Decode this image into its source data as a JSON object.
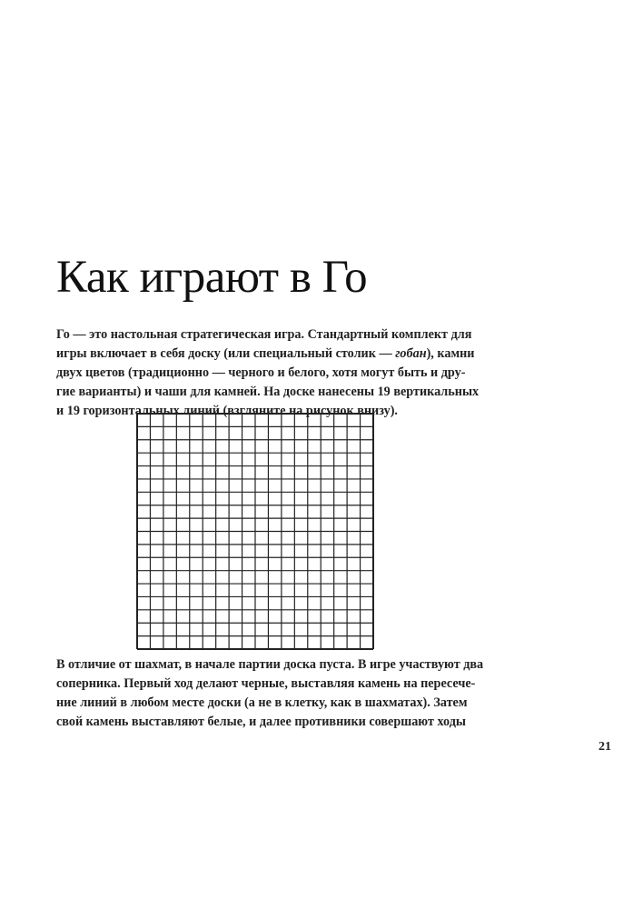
{
  "title": "Как играют в Го",
  "paragraph1": {
    "lines": [
      [
        "Го — это настольная стратегическая игра. Стандартный комплект для"
      ],
      [
        "игры включает в себя доску (или специальный столик — ",
        "гобан",
        "), камни"
      ],
      [
        "двух цветов (традиционно — черного и белого, хотя могут быть и дру-"
      ],
      [
        "гие варианты) и чаши для камней. На доске нанесены 19 вертикальных"
      ],
      [
        "и 19 горизонтальных линий (взгляните на рисунок внизу)."
      ]
    ]
  },
  "figure": {
    "type": "go-board-grid",
    "vertical_lines": 19,
    "horizontal_lines": 19,
    "line_color": "#222222"
  },
  "paragraph2": {
    "lines": [
      "В отличие от шахмат, в начале партии доска пуста. В игре участвуют два",
      "соперника. Первый ход делают черные, выставляя камень на пересече-",
      "ние линий в любом месте доски (а не в клетку, как в шахматах). Затем",
      "свой камень выставляют белые, и далее противники совершают ходы"
    ]
  },
  "page_number": "21"
}
